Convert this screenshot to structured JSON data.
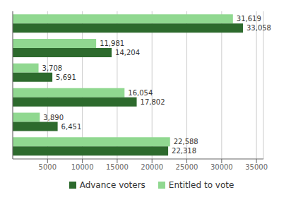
{
  "chart_data": {
    "type": "bar",
    "orientation": "horizontal",
    "categories": [
      null,
      null,
      null,
      null,
      null,
      null
    ],
    "series": [
      {
        "name": "Advance voters",
        "color": "#2d6a2d",
        "values": [
          33058,
          14204,
          5691,
          17802,
          6451,
          22318
        ],
        "value_labels": [
          "33,058",
          "14,204",
          "5,691",
          "17,802",
          "6,451",
          "22,318"
        ]
      },
      {
        "name": "Entitled to vote",
        "color": "#90d890",
        "values": [
          31619,
          11981,
          3708,
          16054,
          3890,
          22588
        ],
        "value_labels": [
          "31,619",
          "11,981",
          "3,708",
          "16,054",
          "3,890",
          "22,588"
        ]
      }
    ],
    "xlim": [
      0,
      36000
    ],
    "xticks": [
      5000,
      10000,
      15000,
      20000,
      25000,
      30000,
      35000
    ],
    "grid": true,
    "data_labels": true,
    "legend": "bottom"
  }
}
